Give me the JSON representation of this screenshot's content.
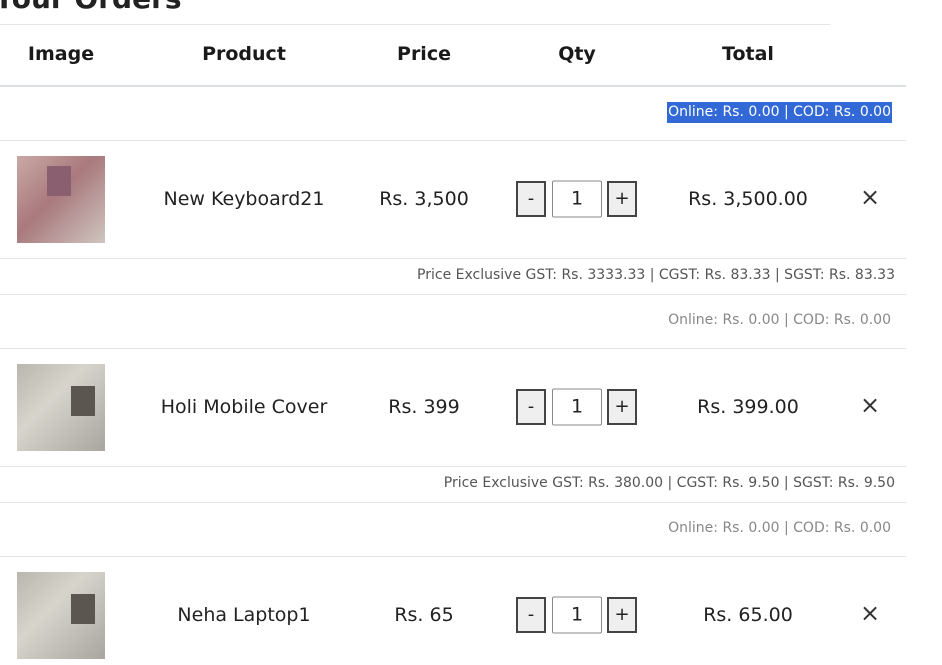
{
  "page_title": "Your Orders",
  "headers": [
    "Image",
    "Product",
    "Price",
    "Qty",
    "Total"
  ],
  "payment_summary": "Online: Rs. 0.00 | COD: Rs. 0.00",
  "items": [
    {
      "name": "New Keyboard21",
      "price": "Rs. 3,500",
      "qty": "1",
      "total": "Rs. 3,500.00",
      "gst": "Price Exclusive GST: Rs. 3333.33 | CGST: Rs. 83.33 | SGST: Rs. 83.33",
      "payment": "Online: Rs. 0.00 | COD: Rs. 0.00"
    },
    {
      "name": "Holi Mobile Cover",
      "price": "Rs. 399",
      "qty": "1",
      "total": "Rs. 399.00",
      "gst": "Price Exclusive GST: Rs. 380.00 | CGST: Rs. 9.50 | SGST: Rs. 9.50",
      "payment": "Online: Rs. 0.00 | COD: Rs. 0.00"
    },
    {
      "name": "Neha Laptop1",
      "price": "Rs. 65",
      "qty": "1",
      "total": "Rs. 65.00"
    }
  ],
  "controls": {
    "minus": "-",
    "plus": "+",
    "remove": "×"
  }
}
